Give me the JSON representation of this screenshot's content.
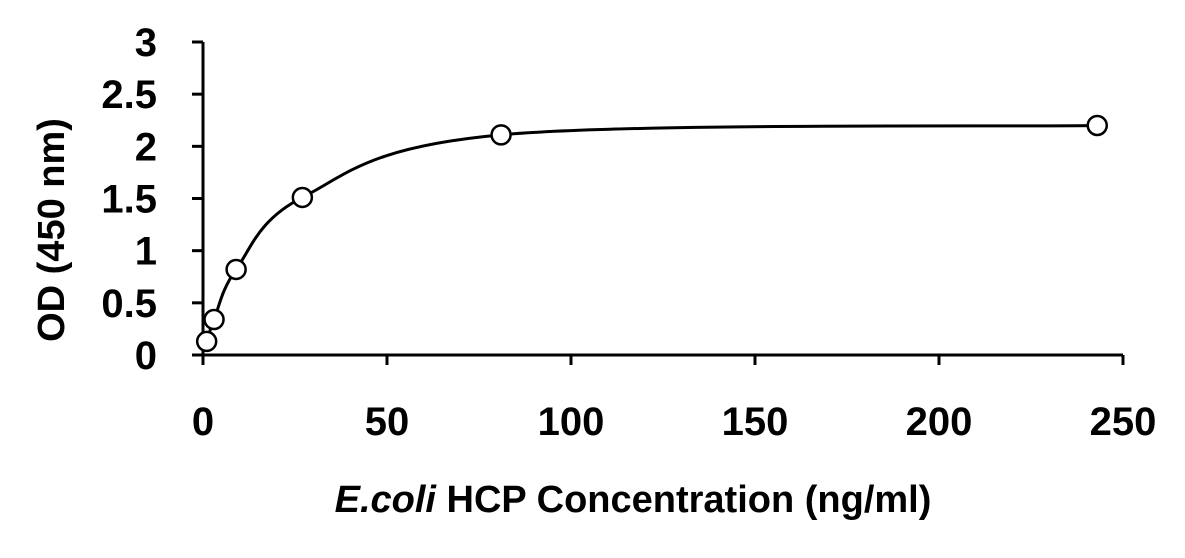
{
  "chart_data": {
    "type": "scatter",
    "title": "",
    "xlabel_italic": "E.coli",
    "xlabel_rest": " HCP Concentration (ng/ml)",
    "ylabel": "OD (450 nm)",
    "xlim": [
      0,
      250
    ],
    "ylim": [
      0,
      3
    ],
    "x_ticks": [
      0,
      50,
      100,
      150,
      200,
      250
    ],
    "y_ticks": [
      0,
      0.5,
      1,
      1.5,
      2,
      2.5,
      3
    ],
    "x_tick_labels": [
      "0",
      "50",
      "100",
      "150",
      "200",
      "250"
    ],
    "y_tick_labels": [
      "0",
      "0.5",
      "1",
      "1.5",
      "2",
      "2.5",
      "3"
    ],
    "grid": false,
    "legend": "none",
    "series": [
      {
        "x": [
          1,
          3,
          9,
          27,
          81,
          243
        ],
        "y": [
          0.13,
          0.34,
          0.82,
          1.51,
          2.11,
          2.2
        ],
        "marker": "open-circle",
        "fit_line": "smooth"
      }
    ]
  }
}
